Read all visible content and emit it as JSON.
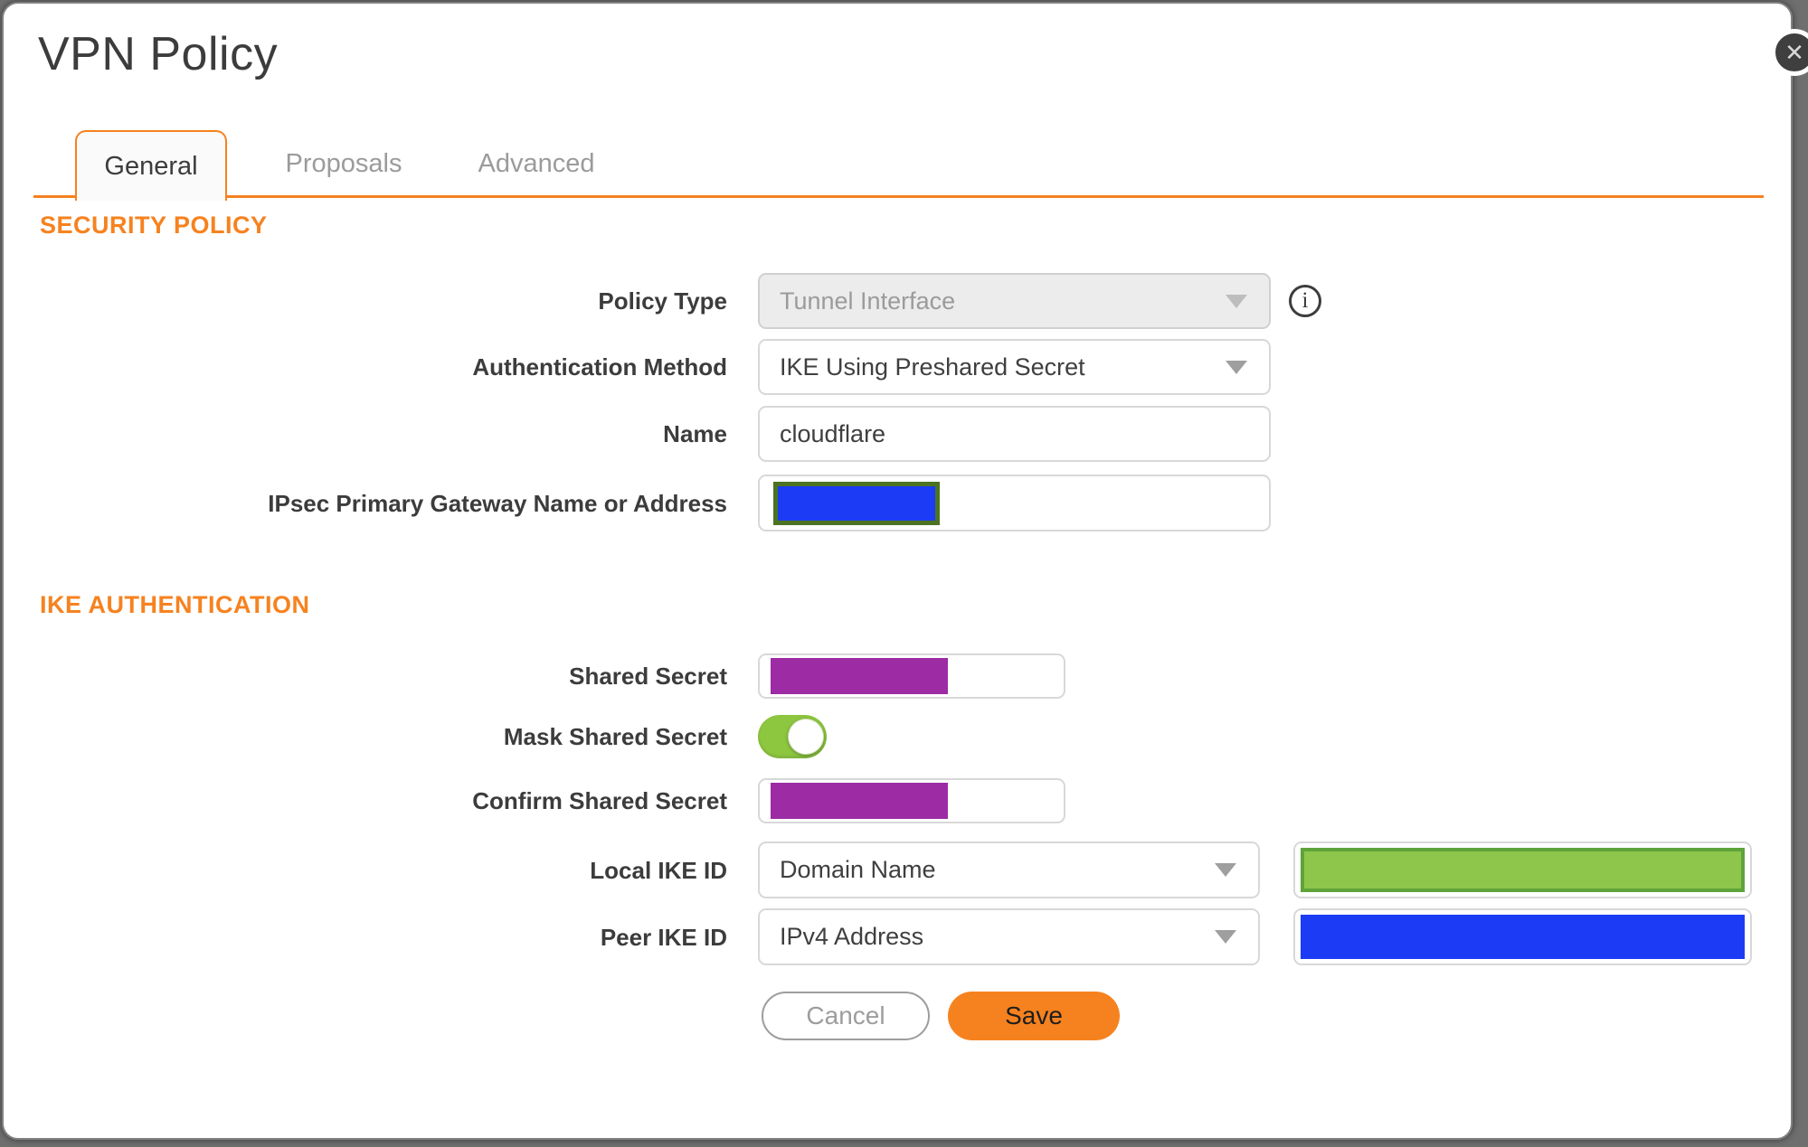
{
  "colors": {
    "accent": "#F6821F",
    "redaction_purple": "#9C2BA4",
    "redaction_blue": "#1C3BF5",
    "redaction_green": "#8DC64B",
    "redaction_green_border": "#5FA33A",
    "gateway_block_border": "#4D7322",
    "toggle_green": "#8DC63F"
  },
  "dialog": {
    "title": "VPN Policy",
    "close_icon": "✕"
  },
  "tabs": {
    "general": "General",
    "proposals": "Proposals",
    "advanced": "Advanced",
    "active_tab": "General"
  },
  "sections": {
    "security_policy": "SECURITY POLICY",
    "ike_authentication": "IKE AUTHENTICATION"
  },
  "form": {
    "policy_type": {
      "label": "Policy Type",
      "value": "Tunnel Interface",
      "disabled": true
    },
    "auth_method": {
      "label": "Authentication Method",
      "value": "IKE Using Preshared Secret"
    },
    "name": {
      "label": "Name",
      "value": "cloudflare"
    },
    "gateway": {
      "label": "IPsec Primary Gateway Name or Address",
      "value_hidden": "redacted-blue-block"
    },
    "shared_secret": {
      "label": "Shared Secret",
      "value_hidden": "redacted-purple-block"
    },
    "mask_shared_secret": {
      "label": "Mask Shared Secret",
      "state": "on"
    },
    "confirm_shared_secret": {
      "label": "Confirm Shared Secret",
      "value_hidden": "redacted-purple-block"
    },
    "local_ike_id": {
      "label": "Local IKE ID",
      "value": "Domain Name",
      "id_value_hidden": "redacted-green-block"
    },
    "peer_ike_id": {
      "label": "Peer IKE ID",
      "value": "IPv4 Address",
      "id_value_hidden": "redacted-blue-block"
    }
  },
  "info_icon_glyph": "i",
  "actions": {
    "cancel": "Cancel",
    "save": "Save"
  }
}
